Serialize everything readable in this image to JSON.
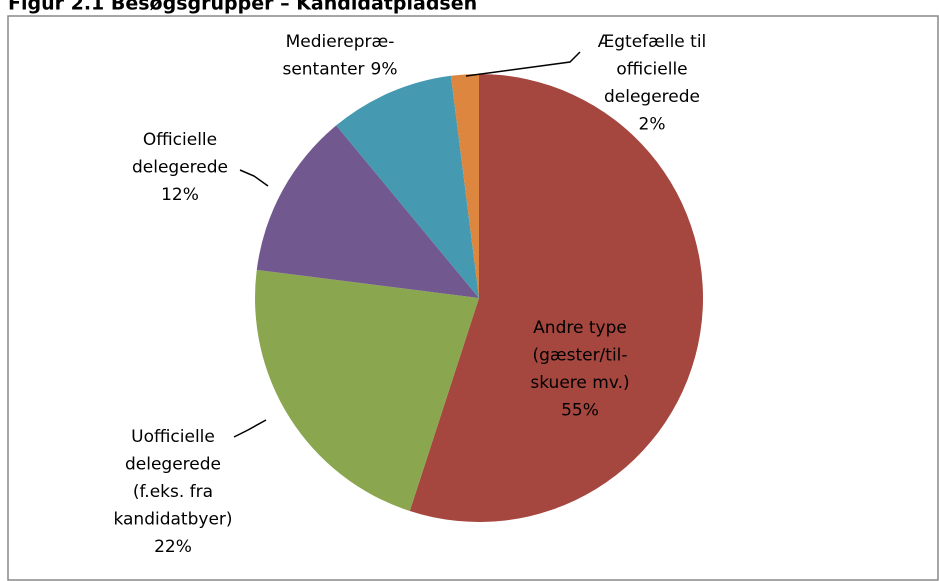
{
  "chart_data": {
    "type": "pie",
    "title": "Figur 2.1 Besøgsgrupper – Kandidatpladsen",
    "categories": [
      "Andre type\n(gæster/til-\nskuere mv.)",
      "Uofficielle\ndelegerede\n(f.eks. fra\nkandidatbyer)",
      "Officielle\ndelegerede",
      "Medierepræ-\nsentanter",
      "Ægtefælle til\nofficielle\ndelegerede"
    ],
    "values": [
      55,
      22,
      12,
      9,
      2
    ],
    "value_labels": [
      "55%",
      "22%",
      "12%",
      "9%",
      "2%"
    ],
    "colors": [
      "#a5463f",
      "#8aa64e",
      "#71598f",
      "#4599b0",
      "#dd8640"
    ]
  }
}
